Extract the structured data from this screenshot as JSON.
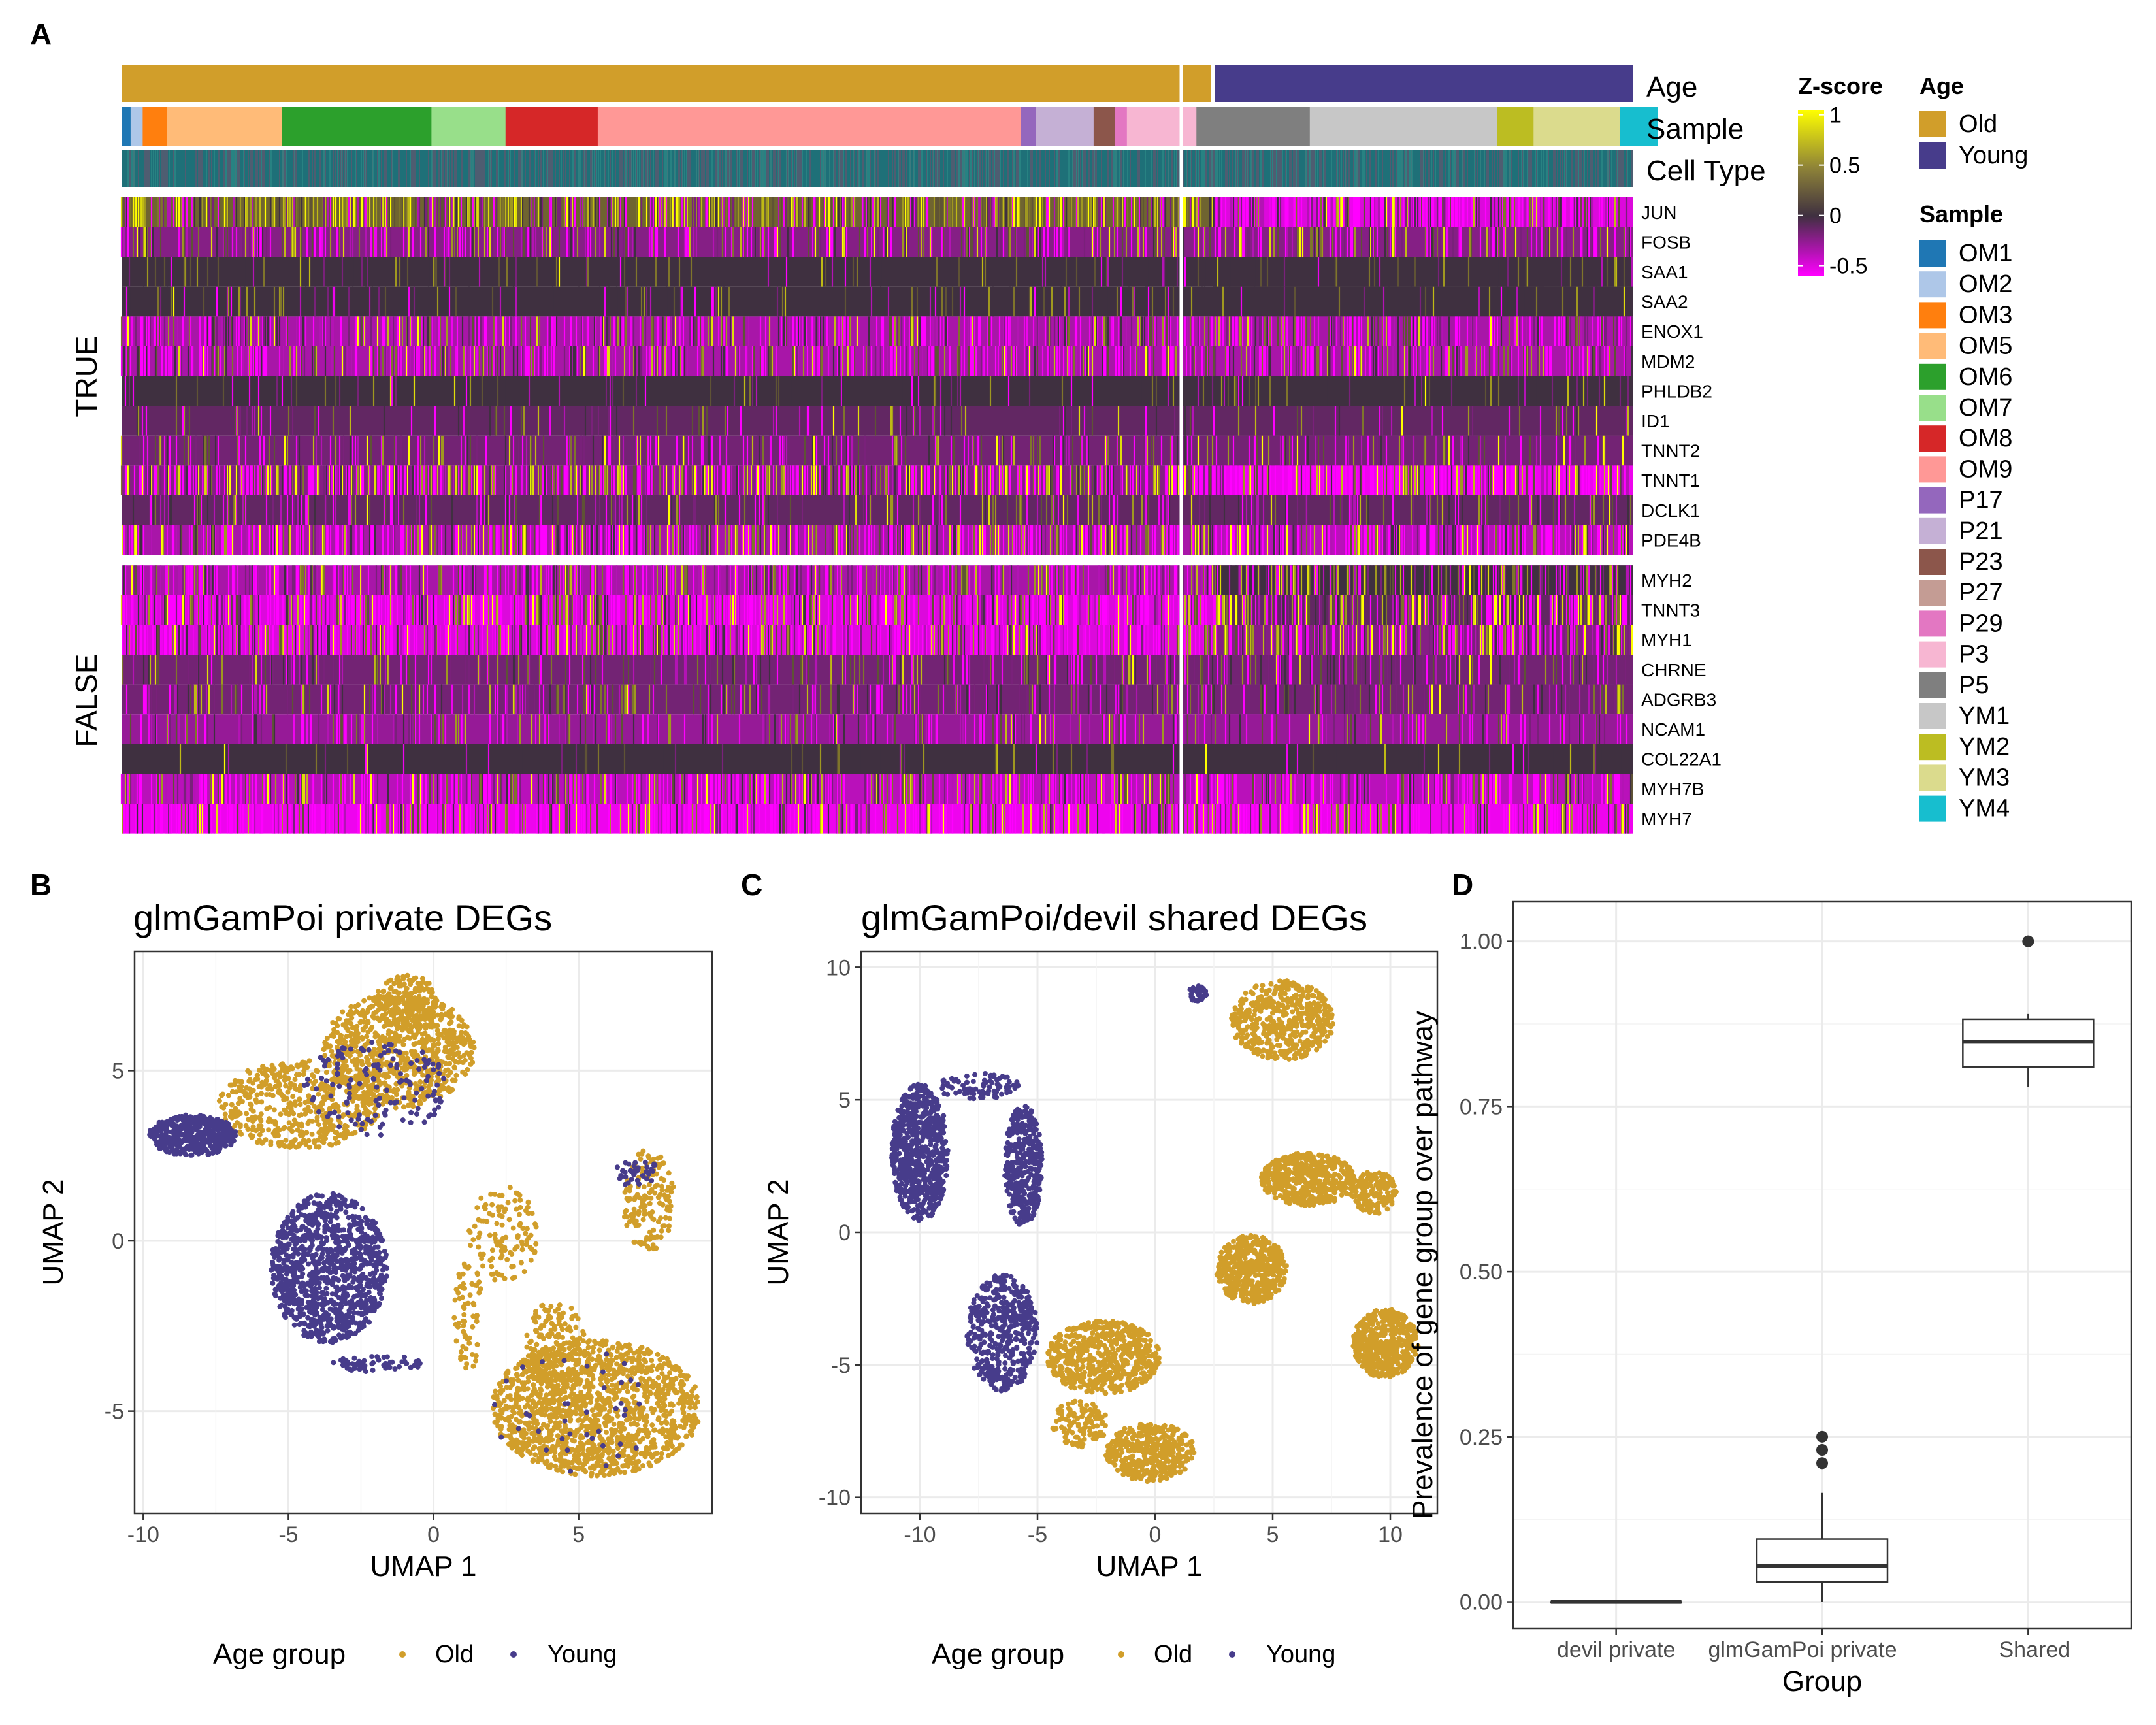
{
  "panel_labels": {
    "a": "A",
    "b": "B",
    "c": "C",
    "d": "D"
  },
  "colors": {
    "old": "#D19E2A",
    "young": "#473C8B",
    "teal": "#1E7078",
    "z_low": "#FF00FF",
    "z_mid": "#3F3040",
    "z_high": "#FFFF00"
  },
  "chart_data": [
    {
      "type": "heatmap",
      "annotation_rows": [
        "Age",
        "Sample",
        "Cell Type"
      ],
      "age_groups": [
        "Old",
        "Young"
      ],
      "samples": {
        "Old": [
          "OM1",
          "OM2",
          "OM3",
          "OM5",
          "OM6",
          "OM7",
          "OM8",
          "OM9",
          "P17",
          "P21",
          "P23",
          "P27",
          "P29",
          "P3"
        ],
        "Young": [
          "P5",
          "YM1",
          "YM2",
          "YM3",
          "YM4"
        ]
      },
      "row_groups": [
        {
          "label": "TRUE",
          "genes": [
            "JUN",
            "FOSB",
            "SAA1",
            "SAA2",
            "ENOX1",
            "MDM2",
            "PHLDB2",
            "ID1",
            "TNNT2",
            "TNNT1",
            "DCLK1",
            "PDE4B"
          ]
        },
        {
          "label": "FALSE",
          "genes": [
            "MYH2",
            "TNNT3",
            "MYH1",
            "CHRNE",
            "ADGRB3",
            "NCAM1",
            "COL22A1",
            "MYH7B",
            "MYH7"
          ]
        }
      ],
      "colorbar": {
        "title": "Z-score",
        "ticks": [
          "1",
          "0.5",
          "0",
          "-0.5"
        ],
        "range": [
          -0.6,
          1.05
        ]
      },
      "legend_age": {
        "title": "Age",
        "entries": [
          {
            "label": "Old",
            "color": "#D19E2A"
          },
          {
            "label": "Young",
            "color": "#473C8B"
          }
        ]
      },
      "legend_sample": {
        "title": "Sample",
        "entries": [
          {
            "label": "OM1",
            "color": "#1F77B4"
          },
          {
            "label": "OM2",
            "color": "#AEC7E8"
          },
          {
            "label": "OM3",
            "color": "#FF7F0E"
          },
          {
            "label": "OM5",
            "color": "#FFBB78"
          },
          {
            "label": "OM6",
            "color": "#2CA02C"
          },
          {
            "label": "OM7",
            "color": "#98DF8A"
          },
          {
            "label": "OM8",
            "color": "#D62728"
          },
          {
            "label": "OM9",
            "color": "#FF9896"
          },
          {
            "label": "P17",
            "color": "#9467BD"
          },
          {
            "label": "P21",
            "color": "#C5B0D5"
          },
          {
            "label": "P23",
            "color": "#8C564B"
          },
          {
            "label": "P27",
            "color": "#C49C94"
          },
          {
            "label": "P29",
            "color": "#E377C2"
          },
          {
            "label": "P3",
            "color": "#F7B6D2"
          },
          {
            "label": "P5",
            "color": "#7F7F7F"
          },
          {
            "label": "YM1",
            "color": "#C7C7C7"
          },
          {
            "label": "YM2",
            "color": "#BCBD22"
          },
          {
            "label": "YM3",
            "color": "#DBDB8D"
          },
          {
            "label": "YM4",
            "color": "#17BECF"
          }
        ]
      },
      "sample_track": [
        [
          "OM1",
          0.006
        ],
        [
          "OM2",
          0.008
        ],
        [
          "OM3",
          0.016
        ],
        [
          "OM5",
          0.076
        ],
        [
          "OM6",
          0.099
        ],
        [
          "OM7",
          0.049
        ],
        [
          "OM8",
          0.061
        ],
        [
          "OM9",
          0.28
        ],
        [
          "P17",
          0.01
        ],
        [
          "P21",
          0.038
        ],
        [
          "P23",
          0.014
        ],
        [
          "P29",
          0.008
        ],
        [
          "P3",
          0.046
        ],
        [
          "P5",
          0.075
        ],
        [
          "YM1",
          0.124
        ],
        [
          "YM2",
          0.024
        ],
        [
          "YM3",
          0.057
        ],
        [
          "YM4",
          0.025
        ]
      ],
      "old_fraction": 0.722
    },
    {
      "type": "scatter",
      "title": "glmGamPoi private DEGs",
      "xlabel": "UMAP 1",
      "ylabel": "UMAP 2",
      "xlim": [
        -10.3,
        9.6
      ],
      "ylim": [
        -8.0,
        8.5
      ],
      "xticks": [
        -10,
        -5,
        0,
        5
      ],
      "yticks": [
        -5,
        0,
        5
      ],
      "grid": true,
      "legend": {
        "title": "Age group",
        "position": "bottom",
        "entries": [
          "Old",
          "Young"
        ]
      },
      "clusters": [
        {
          "group": "Old",
          "cx": -1.2,
          "cy": 5.6,
          "rx": 2.6,
          "ry": 1.7,
          "n": 800
        },
        {
          "group": "Old",
          "cx": -0.9,
          "cy": 7.0,
          "rx": 1.1,
          "ry": 0.8,
          "n": 200
        },
        {
          "group": "Old",
          "cx": -4.6,
          "cy": 4.0,
          "rx": 2.8,
          "ry": 1.3,
          "n": 500
        },
        {
          "group": "Old",
          "cx": 5.6,
          "cy": -4.9,
          "rx": 3.6,
          "ry": 2.0,
          "n": 1400
        },
        {
          "group": "Old",
          "cx": 4.2,
          "cy": -3.0,
          "rx": 1.0,
          "ry": 1.3,
          "n": 150
        },
        {
          "group": "Old",
          "cx": 7.4,
          "cy": 1.2,
          "rx": 0.9,
          "ry": 1.5,
          "n": 150
        },
        {
          "group": "Old",
          "cx": 2.4,
          "cy": 0.2,
          "rx": 1.2,
          "ry": 1.4,
          "n": 120
        },
        {
          "group": "Old",
          "cx": 1.2,
          "cy": -2.2,
          "rx": 0.5,
          "ry": 1.6,
          "n": 70
        },
        {
          "group": "Young",
          "cx": -8.3,
          "cy": 3.1,
          "rx": 1.5,
          "ry": 0.6,
          "n": 500
        },
        {
          "group": "Young",
          "cx": -3.6,
          "cy": -0.8,
          "rx": 2.0,
          "ry": 2.2,
          "n": 1100
        },
        {
          "group": "Young",
          "cx": -2.0,
          "cy": 4.5,
          "rx": 2.5,
          "ry": 1.4,
          "n": 140
        },
        {
          "group": "Young",
          "cx": -2.0,
          "cy": -3.6,
          "rx": 1.6,
          "ry": 0.25,
          "n": 60
        },
        {
          "group": "Young",
          "cx": 7.0,
          "cy": 2.0,
          "rx": 0.8,
          "ry": 0.4,
          "n": 40
        },
        {
          "group": "Young",
          "cx": 5.0,
          "cy": -5.0,
          "rx": 3.0,
          "ry": 1.8,
          "n": 40
        }
      ]
    },
    {
      "type": "scatter",
      "title": "glmGamPoi/devil shared DEGs",
      "xlabel": "UMAP 1",
      "ylabel": "UMAP 2",
      "xlim": [
        -12.5,
        12.0
      ],
      "ylim": [
        -10.6,
        10.6
      ],
      "xticks": [
        -10,
        -5,
        0,
        5,
        10
      ],
      "yticks": [
        -10,
        -5,
        0,
        5,
        10
      ],
      "grid": true,
      "legend": {
        "title": "Age group",
        "position": "bottom",
        "entries": [
          "Old",
          "Young"
        ]
      },
      "clusters": [
        {
          "group": "Young",
          "cx": -10.0,
          "cy": 3.0,
          "rx": 1.2,
          "ry": 2.6,
          "n": 700
        },
        {
          "group": "Young",
          "cx": -5.6,
          "cy": 2.5,
          "rx": 0.8,
          "ry": 2.3,
          "n": 400
        },
        {
          "group": "Young",
          "cx": -7.5,
          "cy": 5.5,
          "rx": 1.8,
          "ry": 0.5,
          "n": 80
        },
        {
          "group": "Young",
          "cx": -6.5,
          "cy": -3.8,
          "rx": 1.5,
          "ry": 2.2,
          "n": 450
        },
        {
          "group": "Young",
          "cx": 1.8,
          "cy": 9.0,
          "rx": 0.4,
          "ry": 0.3,
          "n": 40
        },
        {
          "group": "Old",
          "cx": 5.4,
          "cy": 8.0,
          "rx": 2.2,
          "ry": 1.5,
          "n": 500
        },
        {
          "group": "Old",
          "cx": 6.5,
          "cy": 2.0,
          "rx": 2.0,
          "ry": 1.0,
          "n": 500
        },
        {
          "group": "Old",
          "cx": 9.3,
          "cy": 1.5,
          "rx": 1.0,
          "ry": 0.8,
          "n": 150
        },
        {
          "group": "Old",
          "cx": 4.1,
          "cy": -1.4,
          "rx": 1.5,
          "ry": 1.3,
          "n": 500
        },
        {
          "group": "Old",
          "cx": 9.8,
          "cy": -4.2,
          "rx": 1.4,
          "ry": 1.3,
          "n": 500
        },
        {
          "group": "Old",
          "cx": -2.2,
          "cy": -4.7,
          "rx": 2.4,
          "ry": 1.4,
          "n": 600
        },
        {
          "group": "Old",
          "cx": -0.2,
          "cy": -8.3,
          "rx": 1.9,
          "ry": 1.1,
          "n": 400
        },
        {
          "group": "Old",
          "cx": -3.2,
          "cy": -7.2,
          "rx": 1.2,
          "ry": 0.9,
          "n": 120
        }
      ]
    },
    {
      "type": "box",
      "xlabel": "Group",
      "ylabel": "Prevalence of gene group over pathway",
      "categories": [
        "devil private",
        "glmGamPoi private",
        "Shared"
      ],
      "ylim": [
        -0.04,
        1.06
      ],
      "yticks": [
        0.0,
        0.25,
        0.5,
        0.75,
        1.0
      ],
      "ytick_labels": [
        "0.00",
        "0.25",
        "0.50",
        "0.75",
        "1.00"
      ],
      "grid": true,
      "boxes": [
        {
          "category": "devil private",
          "min": 0.0,
          "q1": 0.0,
          "median": 0.0,
          "q3": 0.0,
          "max": 0.0,
          "outliers": []
        },
        {
          "category": "glmGamPoi private",
          "min": 0.0,
          "q1": 0.03,
          "median": 0.055,
          "q3": 0.095,
          "max": 0.165,
          "outliers": [
            0.21,
            0.23,
            0.25
          ]
        },
        {
          "category": "Shared",
          "min": 0.78,
          "q1": 0.81,
          "median": 0.848,
          "q3": 0.882,
          "max": 0.89,
          "outliers": [
            1.0
          ]
        }
      ]
    }
  ]
}
